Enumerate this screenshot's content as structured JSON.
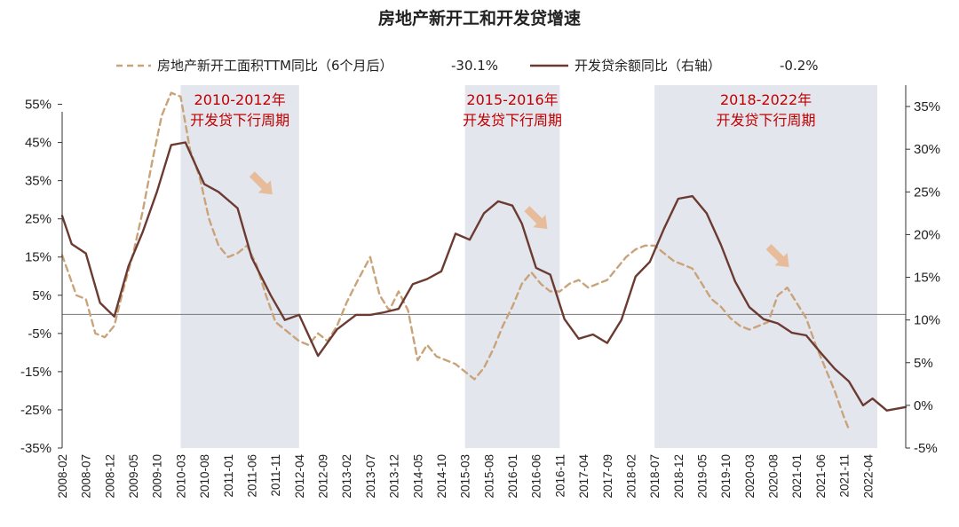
{
  "chart_data": {
    "type": "line",
    "title": "房地产新开工和开发贷增速",
    "colors": {
      "dashed": "#c9a37a",
      "solid": "#6b3b32",
      "shade": "#e4e6ee",
      "annotation": "#c00000",
      "arrow": "#e8b48c"
    },
    "x_tick_labels": [
      "2008-02",
      "2008-07",
      "2008-12",
      "2009-05",
      "2009-10",
      "2010-03",
      "2010-08",
      "2011-01",
      "2011-06",
      "2011-11",
      "2012-04",
      "2012-09",
      "2013-02",
      "2013-07",
      "2013-12",
      "2014-05",
      "2014-10",
      "2015-03",
      "2015-08",
      "2016-01",
      "2016-06",
      "2016-11",
      "2017-04",
      "2017-09",
      "2018-02",
      "2018-07",
      "2018-12",
      "2019-05",
      "2019-10",
      "2020-03",
      "2020-08",
      "2021-01",
      "2021-06",
      "2021-11",
      "2022-04"
    ],
    "y_left": {
      "ticks": [
        "55%",
        "45%",
        "35%",
        "25%",
        "15%",
        "5%",
        "-5%",
        "-15%",
        "-25%",
        "-35%"
      ],
      "min": -35,
      "max": 60
    },
    "y_right": {
      "ticks": [
        "35%",
        "30%",
        "25%",
        "20%",
        "15%",
        "10%",
        "5%",
        "0%",
        "-5%"
      ],
      "min": -5,
      "max": 37.5
    },
    "legend": [
      {
        "label": "房地产新开工面积TTM同比（6个月后）",
        "value": "-30.1%",
        "style": "dashed"
      },
      {
        "label": "开发贷余额同比（右轴）",
        "value": "-0.2%",
        "style": "solid"
      }
    ],
    "shaded_periods": [
      {
        "start": "2010-03",
        "end": "2012-04",
        "label_line1": "2010-2012年",
        "label_line2": "开发贷下行周期"
      },
      {
        "start": "2015-03",
        "end": "2016-11",
        "label_line1": "2015-2016年",
        "label_line2": "开发贷下行周期"
      },
      {
        "start": "2018-07",
        "end": "2022-06",
        "label_line1": "2018-2022年",
        "label_line2": "开发贷下行周期"
      }
    ],
    "series": [
      {
        "name": "房地产新开工面积TTM同比（6个月后）",
        "axis": "left",
        "style": "dashed",
        "points": [
          [
            "2008-02",
            15.5
          ],
          [
            "2008-05",
            5
          ],
          [
            "2008-07",
            4
          ],
          [
            "2008-09",
            -5
          ],
          [
            "2008-11",
            -6
          ],
          [
            "2009-01",
            -3
          ],
          [
            "2009-03",
            7
          ],
          [
            "2009-05",
            16
          ],
          [
            "2009-07",
            27
          ],
          [
            "2009-09",
            40
          ],
          [
            "2009-11",
            52
          ],
          [
            "2010-01",
            58
          ],
          [
            "2010-03",
            57
          ],
          [
            "2010-05",
            43
          ],
          [
            "2010-07",
            36
          ],
          [
            "2010-09",
            25
          ],
          [
            "2010-11",
            18
          ],
          [
            "2011-01",
            15
          ],
          [
            "2011-03",
            16
          ],
          [
            "2011-05",
            18
          ],
          [
            "2011-07",
            13
          ],
          [
            "2011-09",
            5
          ],
          [
            "2011-11",
            -2
          ],
          [
            "2012-01",
            -4
          ],
          [
            "2012-04",
            -7
          ],
          [
            "2012-06",
            -8
          ],
          [
            "2012-08",
            -5
          ],
          [
            "2012-10",
            -7
          ],
          [
            "2012-12",
            -3
          ],
          [
            "2013-02",
            3
          ],
          [
            "2013-04",
            8
          ],
          [
            "2013-07",
            15
          ],
          [
            "2013-09",
            5
          ],
          [
            "2013-11",
            1
          ],
          [
            "2014-01",
            6
          ],
          [
            "2014-03",
            1
          ],
          [
            "2014-05",
            -12
          ],
          [
            "2014-07",
            -8
          ],
          [
            "2014-09",
            -11
          ],
          [
            "2014-11",
            -12
          ],
          [
            "2015-01",
            -13
          ],
          [
            "2015-03",
            -15
          ],
          [
            "2015-05",
            -17
          ],
          [
            "2015-07",
            -14
          ],
          [
            "2015-09",
            -9
          ],
          [
            "2015-11",
            -3
          ],
          [
            "2016-01",
            2
          ],
          [
            "2016-03",
            8
          ],
          [
            "2016-05",
            11
          ],
          [
            "2016-07",
            8
          ],
          [
            "2016-09",
            6
          ],
          [
            "2016-11",
            6
          ],
          [
            "2017-01",
            8
          ],
          [
            "2017-03",
            9
          ],
          [
            "2017-05",
            7
          ],
          [
            "2017-07",
            8
          ],
          [
            "2017-09",
            9
          ],
          [
            "2017-11",
            12
          ],
          [
            "2018-01",
            15
          ],
          [
            "2018-03",
            17
          ],
          [
            "2018-05",
            18
          ],
          [
            "2018-07",
            18
          ],
          [
            "2018-09",
            16
          ],
          [
            "2018-11",
            14
          ],
          [
            "2019-01",
            13
          ],
          [
            "2019-03",
            12
          ],
          [
            "2019-05",
            8
          ],
          [
            "2019-07",
            4
          ],
          [
            "2019-09",
            2
          ],
          [
            "2019-11",
            -1
          ],
          [
            "2020-01",
            -3
          ],
          [
            "2020-03",
            -4
          ],
          [
            "2020-05",
            -3
          ],
          [
            "2020-07",
            -2
          ],
          [
            "2020-09",
            5
          ],
          [
            "2020-11",
            7
          ],
          [
            "2021-01",
            3
          ],
          [
            "2021-03",
            -1
          ],
          [
            "2021-05",
            -8
          ],
          [
            "2021-07",
            -14
          ],
          [
            "2021-09",
            -20
          ],
          [
            "2021-11",
            -27
          ],
          [
            "2021-12",
            -30.1
          ]
        ]
      },
      {
        "name": "开发贷余额同比（右轴）",
        "axis": "right",
        "style": "solid",
        "points": [
          [
            "2008-02",
            22.2
          ],
          [
            "2008-04",
            18.9
          ],
          [
            "2008-07",
            17.8
          ],
          [
            "2008-10",
            12
          ],
          [
            "2009-01",
            10.4
          ],
          [
            "2009-04",
            16.3
          ],
          [
            "2009-07",
            20.3
          ],
          [
            "2009-10",
            25
          ],
          [
            "2010-01",
            30.5
          ],
          [
            "2010-04",
            30.8
          ],
          [
            "2010-08",
            25.9
          ],
          [
            "2010-11",
            25
          ],
          [
            "2011-03",
            23.1
          ],
          [
            "2011-06",
            17.3
          ],
          [
            "2011-10",
            12.9
          ],
          [
            "2012-01",
            10
          ],
          [
            "2012-04",
            10.6
          ],
          [
            "2012-08",
            5.8
          ],
          [
            "2012-12",
            8.9
          ],
          [
            "2013-04",
            10.6
          ],
          [
            "2013-07",
            10.6
          ],
          [
            "2013-10",
            10.9
          ],
          [
            "2014-01",
            11.3
          ],
          [
            "2014-04",
            14.2
          ],
          [
            "2014-07",
            14.8
          ],
          [
            "2014-10",
            15.7
          ],
          [
            "2015-01",
            20.1
          ],
          [
            "2015-04",
            19.4
          ],
          [
            "2015-07",
            22.5
          ],
          [
            "2015-10",
            23.9
          ],
          [
            "2016-01",
            23.4
          ],
          [
            "2016-03",
            21.3
          ],
          [
            "2016-06",
            16.1
          ],
          [
            "2016-09",
            15.3
          ],
          [
            "2016-12",
            10.1
          ],
          [
            "2017-03",
            7.8
          ],
          [
            "2017-06",
            8.3
          ],
          [
            "2017-09",
            7.3
          ],
          [
            "2017-12",
            10
          ],
          [
            "2018-03",
            15.1
          ],
          [
            "2018-06",
            16.8
          ],
          [
            "2018-09",
            20.7
          ],
          [
            "2018-12",
            24.2
          ],
          [
            "2019-03",
            24.5
          ],
          [
            "2019-06",
            22.5
          ],
          [
            "2019-09",
            18.8
          ],
          [
            "2019-12",
            14.5
          ],
          [
            "2020-03",
            11.5
          ],
          [
            "2020-06",
            10.1
          ],
          [
            "2020-09",
            9.6
          ],
          [
            "2020-12",
            8.5
          ],
          [
            "2021-03",
            8.2
          ],
          [
            "2021-06",
            6.2
          ],
          [
            "2021-09",
            4.3
          ],
          [
            "2021-12",
            2.8
          ],
          [
            "2022-03",
            0
          ],
          [
            "2022-05",
            0.8
          ],
          [
            "2022-08",
            -0.6
          ],
          [
            "2022-12",
            -0.2
          ]
        ]
      }
    ]
  }
}
